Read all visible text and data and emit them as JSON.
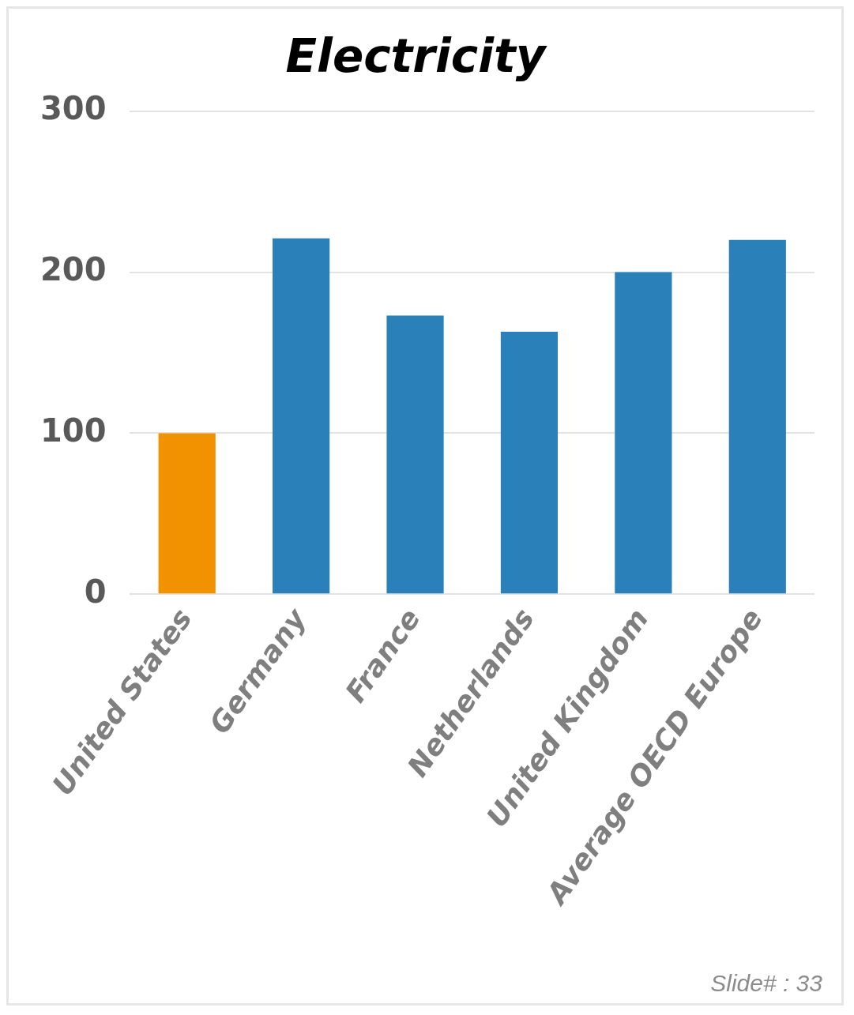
{
  "chart_data": {
    "type": "bar",
    "title": "Electricity",
    "categories": [
      "United States",
      "Germany",
      "France",
      "Netherlands",
      "United Kingdom",
      "Average OECD Europe"
    ],
    "values": [
      100,
      221,
      173,
      163,
      200,
      220
    ],
    "colors": [
      "#f39200",
      "#2a80b8",
      "#2a80b8",
      "#2a80b8",
      "#2a80b8",
      "#2a80b8"
    ],
    "ylim": [
      0,
      300
    ],
    "yticks": [
      0,
      100,
      200,
      300
    ],
    "grid": "y",
    "legend": false,
    "annotations": [
      "Slide# : 33"
    ]
  }
}
